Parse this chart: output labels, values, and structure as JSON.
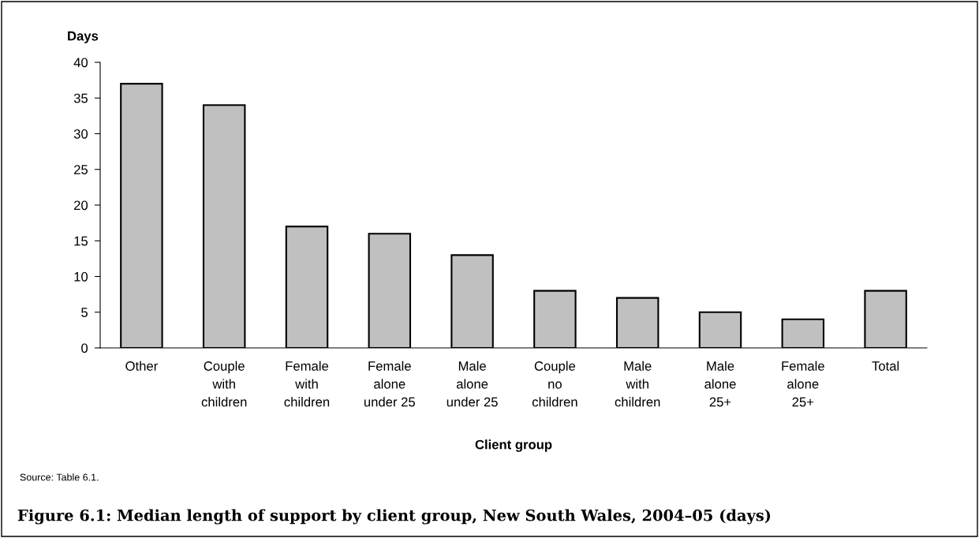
{
  "chart_data": {
    "type": "bar",
    "title": "Figure 6.1: Median length of support by client group, New South Wales, 2004–05 (days)",
    "xlabel": "Client group",
    "ylabel": "Days",
    "categories": [
      "Other",
      "Couple\nwith\nchildren",
      "Female\nwith\nchildren",
      "Female\nalone\nunder 25",
      "Male\nalone\nunder 25",
      "Couple\nno\nchildren",
      "Male\nwith\nchildren",
      "Male\nalone\n25+",
      "Female\nalone\n25+",
      "Total"
    ],
    "values": [
      37,
      34,
      17,
      16,
      13,
      8,
      7,
      5,
      4,
      8
    ],
    "color": "#c0c0c0",
    "ylim": [
      0,
      40
    ],
    "yticks": [
      0,
      5,
      10,
      15,
      20,
      25,
      30,
      35,
      40
    ],
    "grid": false,
    "annotations": [
      "Source: Table 6.1."
    ]
  }
}
